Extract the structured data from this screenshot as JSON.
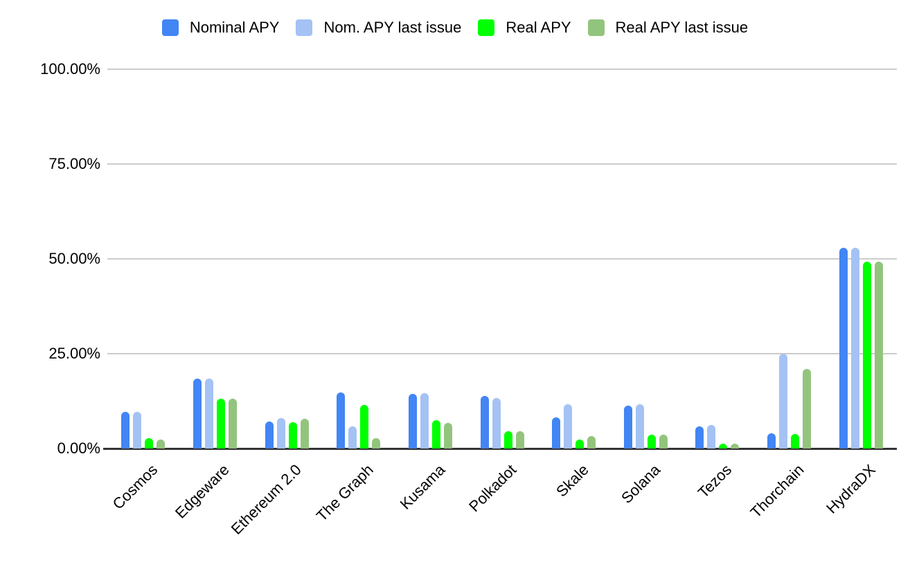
{
  "chart_data": {
    "type": "bar",
    "title": "",
    "xlabel": "",
    "ylabel": "",
    "ylim": [
      0,
      100
    ],
    "grid": true,
    "legend_position": "top",
    "y_ticks": [
      "0.00%",
      "25.00%",
      "50.00%",
      "75.00%",
      "100.00%"
    ],
    "categories": [
      "Cosmos",
      "Edgeware",
      "Ethereum 2.0",
      "The Graph",
      "Kusama",
      "Polkadot",
      "Skale",
      "Solana",
      "Tezos",
      "Thorchain",
      "HydraDX"
    ],
    "series": [
      {
        "name": "Nominal APY",
        "color": "#4285F4",
        "values": [
          9.7,
          18.5,
          7.2,
          14.8,
          14.5,
          13.9,
          8.3,
          11.4,
          5.9,
          4.1,
          53.0
        ]
      },
      {
        "name": "Nom. APY last issue",
        "color": "#A4C2F4",
        "values": [
          9.7,
          18.5,
          8.0,
          5.8,
          14.6,
          13.4,
          11.7,
          11.7,
          6.2,
          25.0,
          53.0
        ]
      },
      {
        "name": "Real APY",
        "color": "#00FF00",
        "values": [
          2.8,
          13.2,
          7.0,
          11.5,
          7.4,
          4.6,
          2.3,
          3.7,
          1.3,
          3.8,
          49.3
        ]
      },
      {
        "name": "Real APY last issue",
        "color": "#93C47D",
        "values": [
          2.4,
          13.2,
          7.8,
          2.7,
          6.8,
          4.6,
          3.3,
          3.7,
          1.2,
          20.9,
          49.3
        ]
      }
    ]
  },
  "colors": {
    "gridline": "#cccccc",
    "axis": "#333333",
    "text": "#000000",
    "background": "#ffffff"
  }
}
